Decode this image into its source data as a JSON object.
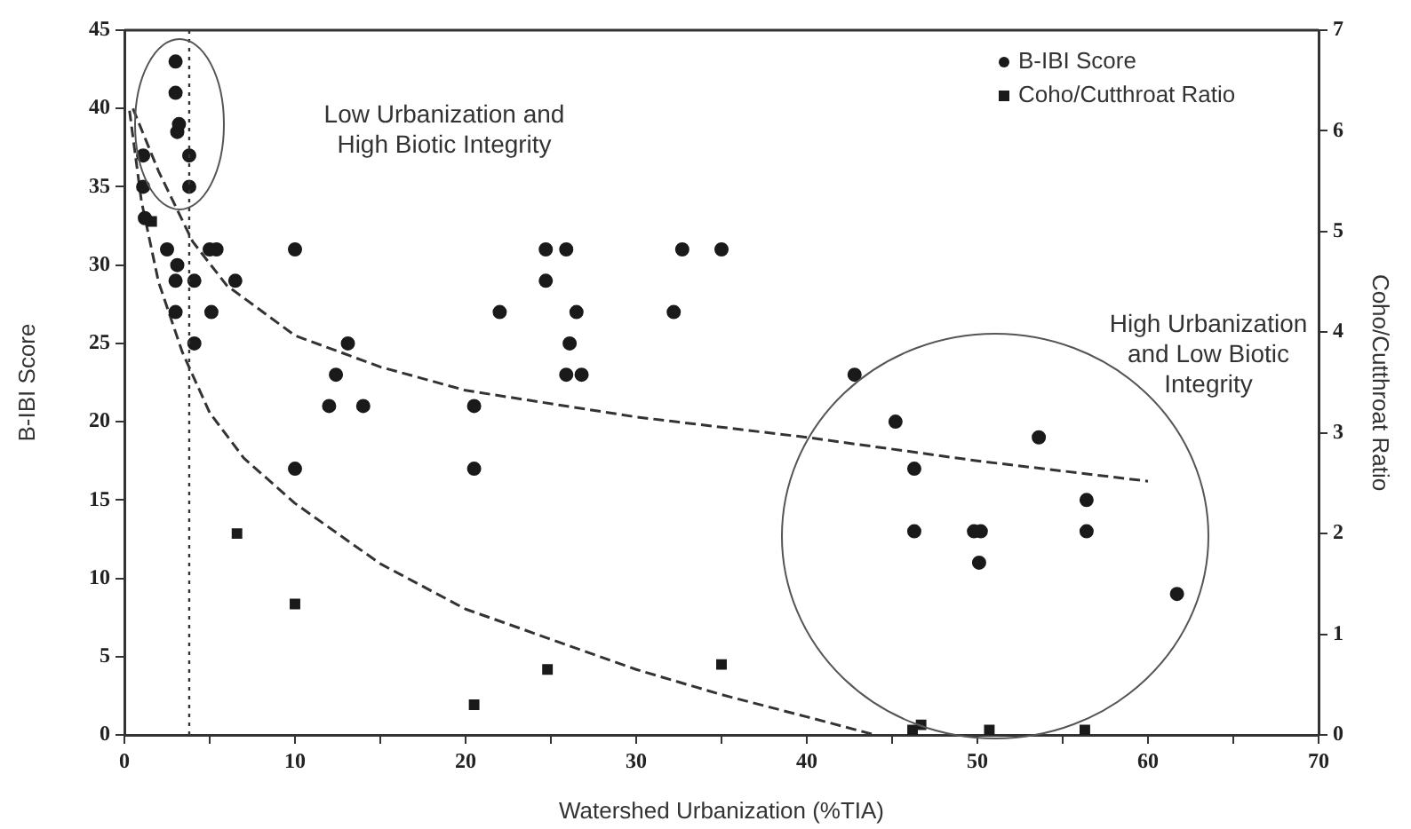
{
  "chart_data": {
    "type": "scatter",
    "xlabel": "Watershed Urbanization (%TIA)",
    "ylabel": "B-IBI Score",
    "y2label": "Coho/Cutthroat Ratio",
    "annotations": [
      "Low Urbanization and\nHigh Biotic Integrity",
      "High Urbanization\nand Low Biotic\nIntegrity"
    ],
    "xlim": [
      0,
      70
    ],
    "xticks": [
      0,
      {
        "value": 5,
        "label": null
      },
      10,
      {
        "value": 15,
        "label": null
      },
      20,
      {
        "value": 25,
        "label": null
      },
      30,
      {
        "value": 35,
        "label": null
      },
      40,
      {
        "value": 45,
        "label": null
      },
      50,
      {
        "value": 55,
        "label": null
      },
      60,
      {
        "value": 65,
        "label": null
      },
      70
    ],
    "ylim": [
      0,
      45
    ],
    "yticks": [
      0,
      5,
      10,
      15,
      20,
      25,
      30,
      35,
      40,
      45
    ],
    "y2lim": [
      0,
      7
    ],
    "y2ticks": [
      0,
      1,
      2,
      3,
      4,
      5,
      6,
      7
    ],
    "grid": false,
    "legend": "top right",
    "ref_lines": [
      {
        "axis": "x",
        "value": 3.8,
        "line_style": "dotted",
        "color": "#333333"
      }
    ],
    "series": [
      {
        "name": "B-IBI Score",
        "type": "scatter",
        "marker": "circle",
        "color": "#1a1a1a",
        "x": [
          3.0,
          3.0,
          3.1,
          3.2,
          3.8,
          3.8,
          1.1,
          1.1,
          1.2,
          2.5,
          5.0,
          5.4,
          10.0,
          3.1,
          3.0,
          4.1,
          6.5,
          3.0,
          5.1,
          4.1,
          13.1,
          12.4,
          12.0,
          14.0,
          10.0,
          24.7,
          25.9,
          32.7,
          35.0,
          24.7,
          22.0,
          26.5,
          32.2,
          26.1,
          25.9,
          26.8,
          42.8,
          20.5,
          20.5,
          45.2,
          46.3,
          46.3,
          53.6,
          56.4,
          56.4,
          49.8,
          50.2,
          50.1,
          61.7
        ],
        "values": [
          43,
          41,
          38.5,
          39,
          37,
          35,
          37,
          35,
          33,
          31,
          31,
          31,
          31,
          30,
          29,
          29,
          29,
          27,
          27,
          25,
          25,
          23,
          21,
          21,
          17,
          31,
          31,
          31,
          31,
          29,
          27,
          27,
          27,
          25,
          23,
          23,
          23,
          21,
          17,
          20,
          17,
          13,
          19,
          15,
          13,
          13,
          13,
          11,
          9
        ]
      },
      {
        "name": "Coho/Cutthroat Ratio",
        "type": "scatter",
        "marker": "square",
        "axis": "y2",
        "color": "#1a1a1a",
        "x": [
          1.6,
          6.6,
          10.0,
          20.5,
          24.8,
          35.0,
          46.7,
          46.2,
          50.7,
          56.3
        ],
        "values": [
          5.1,
          2.0,
          1.3,
          0.3,
          0.65,
          0.7,
          0.1,
          0.05,
          0.05,
          0.05
        ]
      },
      {
        "type": "line",
        "marker": "none",
        "line_style": "dashed",
        "color": "#333333",
        "x": [
          0.5,
          2,
          4,
          6,
          10,
          15,
          20,
          30,
          40,
          50,
          60
        ],
        "values": [
          40,
          36,
          31.5,
          28.7,
          25.5,
          23.5,
          22,
          20.3,
          19,
          17.5,
          16.2
        ]
      },
      {
        "type": "line",
        "marker": "none",
        "line_style": "dashed",
        "axis": "y2",
        "color": "#333333",
        "x": [
          0.3,
          1,
          2,
          3.4,
          5,
          7,
          10,
          15,
          20,
          25,
          30,
          35,
          40,
          44
        ],
        "values": [
          6.2,
          5.3,
          4.5,
          3.8,
          3.2,
          2.75,
          2.3,
          1.7,
          1.25,
          0.95,
          0.65,
          0.4,
          0.18,
          0
        ]
      }
    ]
  }
}
